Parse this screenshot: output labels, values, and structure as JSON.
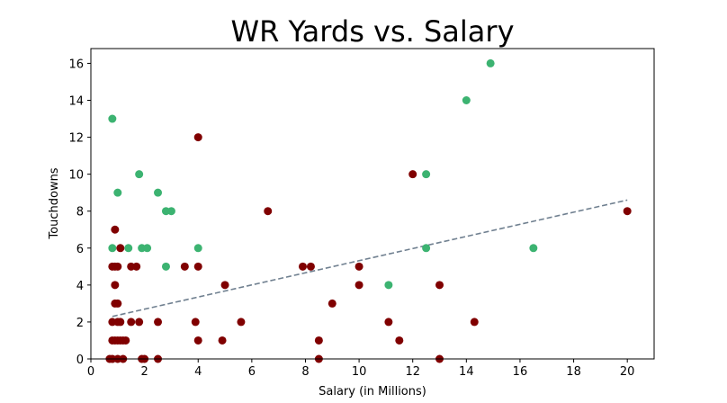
{
  "chart_data": {
    "type": "scatter",
    "title": "WR Yards vs. Salary",
    "xlabel": "Salary (in Millions)",
    "ylabel": "Touchdowns",
    "xlim": [
      0,
      21
    ],
    "ylim": [
      0,
      16.8
    ],
    "xticks": [
      0,
      2,
      4,
      6,
      8,
      10,
      12,
      14,
      16,
      18,
      20
    ],
    "yticks": [
      0,
      2,
      4,
      6,
      8,
      10,
      12,
      14,
      16
    ],
    "grid": false,
    "legend": "none",
    "colors": {
      "green": "#3cb371",
      "dark_red": "#800000",
      "trendline": "#708090"
    },
    "trendline": {
      "style": "dashed",
      "x": [
        0.8,
        20
      ],
      "y": [
        2.3,
        8.6
      ]
    },
    "series": [
      {
        "color": "#3cb371",
        "x": [
          0.8,
          0.8,
          1.0,
          1.4,
          1.8,
          1.9,
          2.1,
          2.5,
          2.8,
          2.8,
          3.0,
          4.0,
          11.1,
          12.5,
          12.5,
          14.0,
          14.9,
          16.5
        ],
        "y": [
          13,
          6,
          9,
          6,
          10,
          6,
          6,
          9,
          8,
          5,
          8,
          6,
          4,
          10,
          6,
          14,
          16,
          6
        ]
      },
      {
        "color": "#800000",
        "x": [
          0.7,
          0.8,
          0.8,
          0.8,
          0.8,
          0.9,
          0.9,
          0.9,
          0.9,
          0.9,
          1.0,
          1.0,
          1.0,
          1.0,
          1.0,
          1.1,
          1.1,
          1.1,
          1.2,
          1.2,
          1.3,
          1.5,
          1.5,
          1.7,
          1.8,
          1.9,
          2.0,
          2.5,
          2.5,
          3.5,
          3.9,
          4.0,
          4.0,
          4.0,
          4.9,
          5.0,
          5.6,
          6.6,
          7.9,
          8.2,
          8.5,
          8.5,
          9.0,
          10.0,
          10.0,
          11.1,
          11.5,
          12.0,
          13.0,
          13.0,
          14.3,
          20.0
        ],
        "y": [
          0,
          0,
          1,
          2,
          5,
          7,
          4,
          3,
          1,
          5,
          2,
          1,
          0,
          3,
          5,
          6,
          2,
          1,
          1,
          0,
          1,
          2,
          5,
          5,
          2,
          0,
          0,
          2,
          0,
          5,
          2,
          12,
          5,
          1,
          1,
          4,
          2,
          8,
          5,
          5,
          1,
          0,
          3,
          5,
          4,
          2,
          1,
          10,
          4,
          0,
          2,
          8
        ]
      }
    ]
  }
}
